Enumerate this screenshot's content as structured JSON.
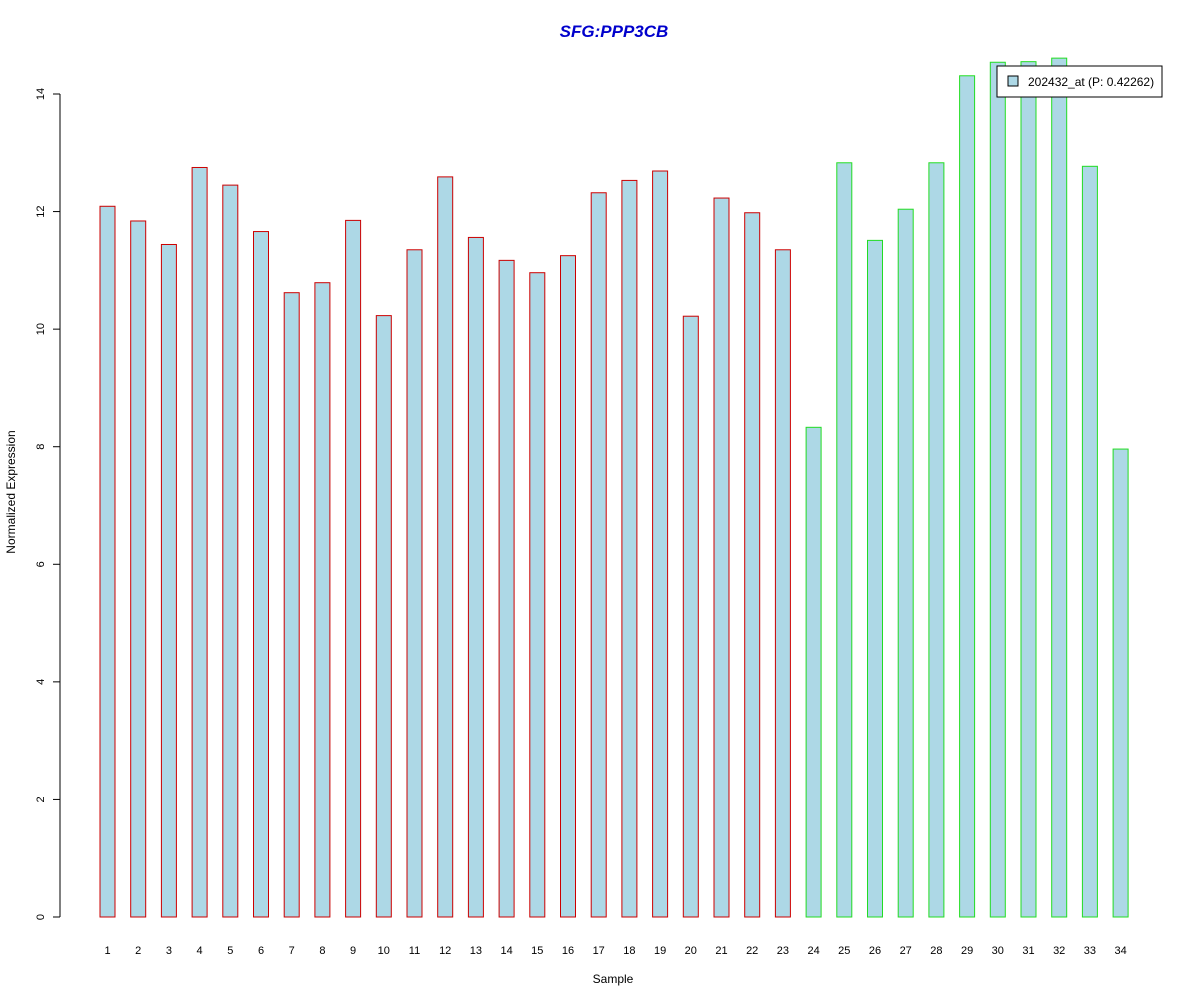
{
  "chart_data": {
    "type": "bar",
    "title": "SFG:PPP3CB",
    "xlabel": "Sample",
    "ylabel": "Normalized Expression",
    "ylim": [
      0,
      14
    ],
    "yticks": [
      0,
      2,
      4,
      6,
      8,
      10,
      12,
      14
    ],
    "categories": [
      "1",
      "2",
      "3",
      "4",
      "5",
      "6",
      "7",
      "8",
      "9",
      "10",
      "11",
      "12",
      "13",
      "14",
      "15",
      "16",
      "17",
      "18",
      "19",
      "20",
      "21",
      "22",
      "23",
      "24",
      "25",
      "26",
      "27",
      "28",
      "29",
      "30",
      "31",
      "32",
      "33",
      "34"
    ],
    "values": [
      12.09,
      11.84,
      11.44,
      12.75,
      12.45,
      11.66,
      10.62,
      10.79,
      11.85,
      10.23,
      11.35,
      12.59,
      11.56,
      11.17,
      10.96,
      11.25,
      12.32,
      12.53,
      12.69,
      10.22,
      12.23,
      11.98,
      11.35,
      8.33,
      12.83,
      11.51,
      12.04,
      12.83,
      14.31,
      14.54,
      14.55,
      14.61,
      12.77,
      7.96
    ],
    "group_colors": [
      "#cc0000",
      "#cc0000",
      "#cc0000",
      "#cc0000",
      "#cc0000",
      "#cc0000",
      "#cc0000",
      "#cc0000",
      "#cc0000",
      "#cc0000",
      "#cc0000",
      "#cc0000",
      "#cc0000",
      "#cc0000",
      "#cc0000",
      "#cc0000",
      "#cc0000",
      "#cc0000",
      "#cc0000",
      "#cc0000",
      "#cc0000",
      "#cc0000",
      "#cc0000",
      "#22dd22",
      "#22dd22",
      "#22dd22",
      "#22dd22",
      "#22dd22",
      "#22dd22",
      "#22dd22",
      "#22dd22",
      "#22dd22",
      "#22dd22",
      "#22dd22"
    ],
    "bar_fill": "#add8e6",
    "title_color": "#0000cc",
    "legend": {
      "placement": "top-right",
      "entries": [
        {
          "label": "202432_at (P: 0.42262)",
          "color": "#add8e6"
        }
      ]
    },
    "grid": false
  }
}
